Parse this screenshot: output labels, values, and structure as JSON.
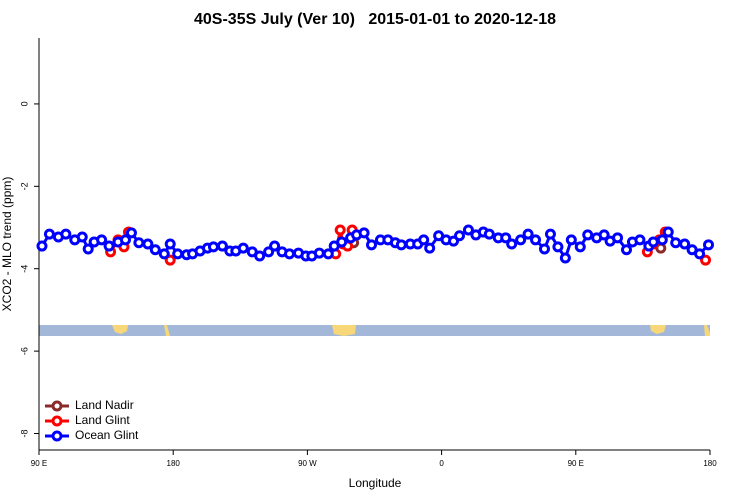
{
  "chart_data": {
    "type": "line",
    "title": "40S-35S July (Ver 10)   2015-01-01 to 2020-12-18",
    "xlabel": "Longitude",
    "ylabel": "XCO2 - MLO trend (ppm)",
    "xlim": [
      90,
      540
    ],
    "ylim": [
      -8.4,
      1.6
    ],
    "xticks": [
      {
        "value": 90,
        "label": "90 E"
      },
      {
        "value": 180,
        "label": "180"
      },
      {
        "value": 270,
        "label": "90 W"
      },
      {
        "value": 360,
        "label": "0"
      },
      {
        "value": 450,
        "label": "90 E"
      },
      {
        "value": 540,
        "label": "180"
      }
    ],
    "yticks": [
      0,
      -2,
      -4,
      -6,
      -8
    ],
    "legend": "bottomleft",
    "series": [
      {
        "name": "Land Nadir",
        "color": "#8b2a2a",
        "x": [
          301,
          420,
          507
        ],
        "values": [
          -3.37,
          null,
          -3.5
        ]
      },
      {
        "name": "Land Glint",
        "color": "#ff0000",
        "x": [
          138,
          143,
          147,
          150,
          160,
          178,
          250,
          289,
          292,
          294,
          297,
          300,
          400,
          498,
          502,
          506,
          510,
          520,
          537
        ],
        "values": [
          -3.59,
          -3.3,
          -3.47,
          -3.11,
          null,
          -3.79,
          null,
          -3.64,
          -3.06,
          -3.4,
          -3.45,
          -3.06,
          null,
          -3.59,
          -3.4,
          -3.3,
          -3.11,
          null,
          -3.79
        ]
      },
      {
        "name": "Ocean Glint",
        "color": "#0000ff",
        "x": [
          92,
          97,
          103,
          108,
          114,
          119,
          123,
          127,
          132,
          137,
          143,
          148,
          152,
          157,
          163,
          168,
          174,
          178,
          183,
          189,
          193,
          198,
          203,
          207,
          213,
          218,
          222,
          227,
          233,
          238,
          244,
          248,
          253,
          258,
          264,
          269,
          273,
          278,
          284,
          288,
          293,
          299,
          303,
          308,
          313,
          319,
          324,
          329,
          333,
          339,
          344,
          348,
          352,
          358,
          363,
          368,
          372,
          378,
          383,
          388,
          392,
          398,
          403,
          407,
          413,
          418,
          423,
          429,
          433,
          438,
          443,
          447,
          453,
          458,
          464,
          469,
          473,
          478,
          484,
          488,
          493,
          499,
          502,
          508,
          512,
          517,
          523,
          528,
          533,
          539
        ],
        "values": [
          -3.45,
          -3.16,
          -3.23,
          -3.16,
          -3.3,
          -3.23,
          -3.52,
          -3.35,
          -3.3,
          -3.45,
          -3.35,
          -3.3,
          -3.13,
          -3.37,
          -3.4,
          -3.54,
          -3.64,
          -3.4,
          -3.64,
          -3.66,
          -3.64,
          -3.57,
          -3.5,
          -3.47,
          -3.45,
          -3.57,
          -3.57,
          -3.5,
          -3.59,
          -3.69,
          -3.59,
          -3.45,
          -3.59,
          -3.64,
          -3.62,
          -3.69,
          -3.69,
          -3.62,
          -3.64,
          -3.45,
          -3.35,
          -3.25,
          -3.18,
          -3.13,
          -3.42,
          -3.3,
          -3.3,
          -3.37,
          -3.42,
          -3.4,
          -3.4,
          -3.3,
          -3.5,
          -3.2,
          -3.3,
          -3.33,
          -3.2,
          -3.06,
          -3.18,
          -3.11,
          -3.16,
          -3.25,
          -3.25,
          -3.4,
          -3.3,
          -3.16,
          -3.3,
          -3.52,
          -3.16,
          -3.47,
          -3.74,
          -3.3,
          -3.47,
          -3.18,
          -3.25,
          -3.18,
          -3.33,
          -3.25,
          -3.54,
          -3.35,
          -3.3,
          -3.45,
          -3.35,
          -3.3,
          -3.11,
          -3.37,
          -3.4,
          -3.54,
          -3.64,
          -3.42
        ]
      }
    ]
  }
}
